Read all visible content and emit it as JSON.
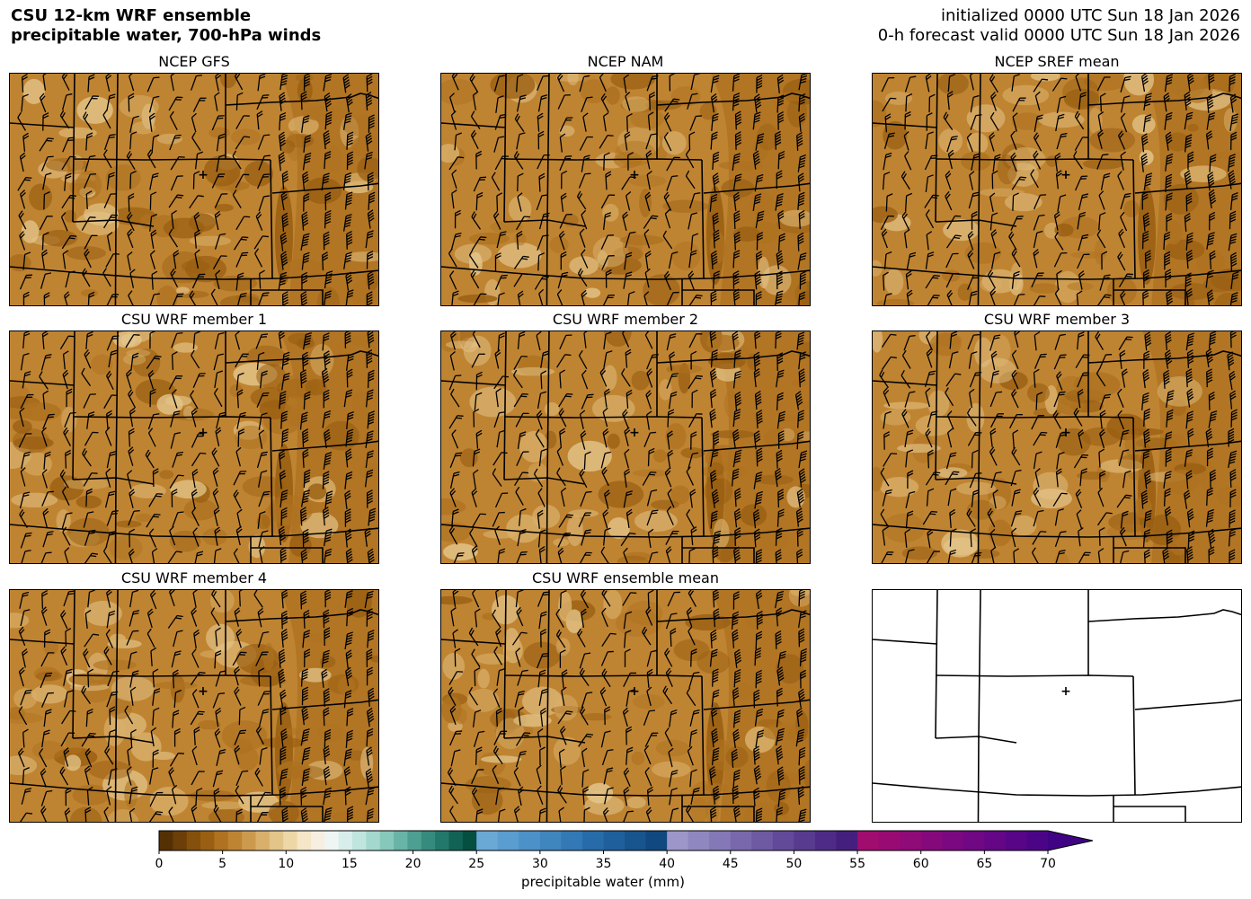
{
  "header": {
    "title_line1": "CSU 12-km WRF ensemble",
    "title_line2": "precipitable water, 700-hPa winds",
    "init_line": "initialized 0000 UTC Sun 18 Jan 2026",
    "valid_line": "0-h forecast valid 0000 UTC Sun 18 Jan 2026"
  },
  "panels": [
    {
      "title": "NCEP GFS",
      "filled": true
    },
    {
      "title": "NCEP NAM",
      "filled": true
    },
    {
      "title": "NCEP SREF mean",
      "filled": true
    },
    {
      "title": "CSU WRF member 1",
      "filled": true
    },
    {
      "title": "CSU WRF member 2",
      "filled": true
    },
    {
      "title": "CSU WRF member 3",
      "filled": true
    },
    {
      "title": "CSU WRF member 4",
      "filled": true
    },
    {
      "title": "CSU WRF ensemble mean",
      "filled": true
    },
    {
      "title": "",
      "filled": false
    }
  ],
  "colorbar": {
    "label": "precipitable water (mm)",
    "ticks": [
      "0",
      "5",
      "10",
      "15",
      "20",
      "25",
      "30",
      "35",
      "40",
      "45",
      "50",
      "55",
      "60",
      "65",
      "70"
    ],
    "range": [
      0,
      70
    ],
    "extend": "max",
    "segments": [
      {
        "from": 0,
        "to": 25,
        "colors": [
          "#543005",
          "#6c3e08",
          "#84500b",
          "#9a5f12",
          "#ae7220",
          "#bf8432",
          "#cc9a4e",
          "#d9b06b",
          "#e3c489",
          "#eed7a6",
          "#f4e6c6",
          "#f6efe2",
          "#eef5f3",
          "#d8eeea",
          "#c0e5de",
          "#a4d8ce",
          "#86c8bb",
          "#68b4a6",
          "#4d9f92",
          "#358b7e",
          "#227869",
          "#126355",
          "#054f40"
        ]
      },
      {
        "from": 25,
        "to": 40,
        "colors": [
          "#6aa8d6",
          "#5a9dcf",
          "#4c91c7",
          "#3f85be",
          "#3279b5",
          "#276ca9",
          "#1f609c",
          "#18548e",
          "#114880"
        ]
      },
      {
        "from": 40,
        "to": 55,
        "colors": [
          "#9c97c8",
          "#8f87bf",
          "#8478b6",
          "#7968ac",
          "#6e59a3",
          "#634a99",
          "#583a8f",
          "#4e2b86",
          "#451f7d"
        ]
      },
      {
        "from": 55,
        "to": 70,
        "colors": [
          "#a10c6f",
          "#990b73",
          "#900a78",
          "#86097c",
          "#7b0880",
          "#700783",
          "#640686",
          "#580587",
          "#4c0487"
        ]
      }
    ],
    "extend_color": "#3f0384"
  },
  "map": {
    "field_colors": [
      "#e3c489",
      "#d9b06b",
      "#cc9a4e",
      "#bf8432",
      "#ae7220",
      "#9a5f12"
    ],
    "barb_color": "#000000",
    "boundary_color": "#000000",
    "city_marker": "+"
  }
}
